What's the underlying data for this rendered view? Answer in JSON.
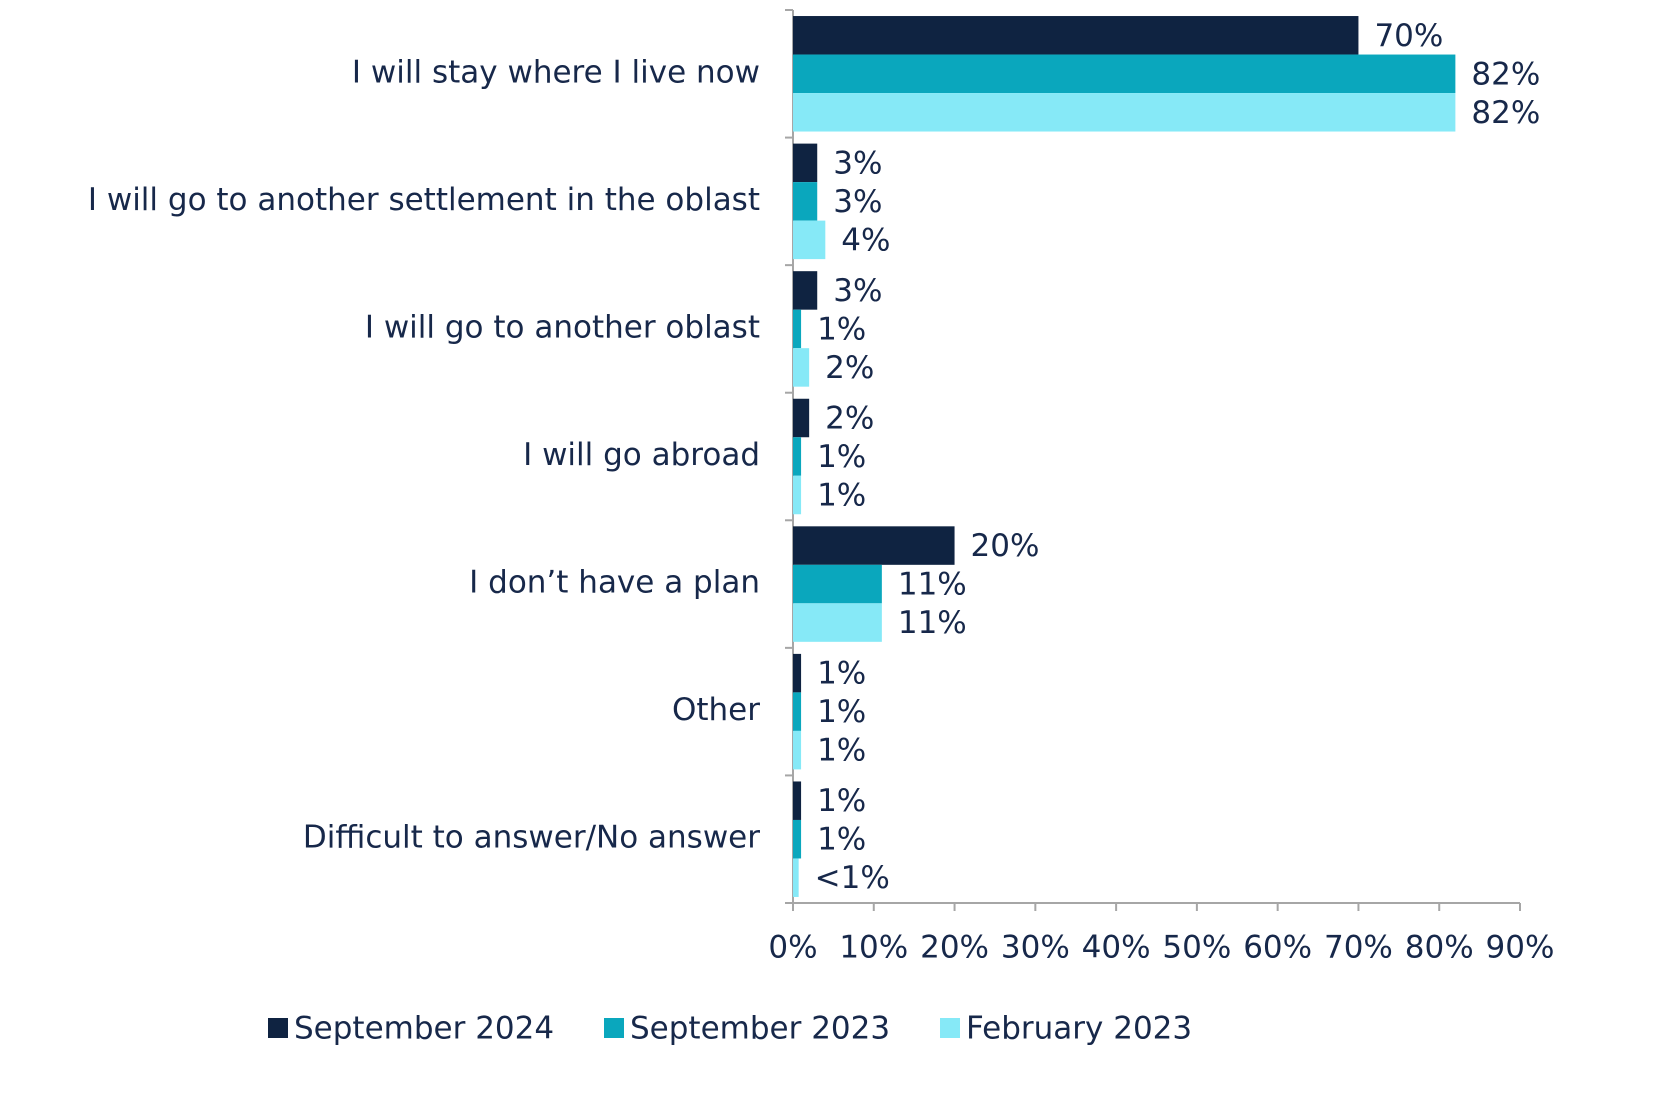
{
  "chart_data": {
    "type": "bar",
    "orientation": "horizontal",
    "categories": [
      "I will stay where I live now",
      "I will go to another settlement in the oblast",
      "I will go to another oblast",
      "I will go abroad",
      "I don’t have a plan",
      "Other",
      "Difficult to answer/No answer"
    ],
    "series": [
      {
        "name": "September 2024",
        "color": "#0f2341",
        "values": [
          70,
          3,
          3,
          2,
          20,
          1,
          1
        ],
        "value_labels": [
          "70%",
          "3%",
          "3%",
          "2%",
          "20%",
          "1%",
          "1%"
        ]
      },
      {
        "name": "September 2023",
        "color": "#0aa7bd",
        "values": [
          82,
          3,
          1,
          1,
          11,
          1,
          1
        ],
        "value_labels": [
          "82%",
          "3%",
          "1%",
          "1%",
          "11%",
          "1%",
          "1%"
        ]
      },
      {
        "name": "February 2023",
        "color": "#86e9f7",
        "values": [
          82,
          4,
          2,
          1,
          11,
          1,
          0.7
        ],
        "value_labels": [
          "82%",
          "4%",
          "2%",
          "1%",
          "11%",
          "1%",
          "<1%"
        ]
      }
    ],
    "xlim": [
      0,
      90
    ],
    "xticks": [
      {
        "value": 0,
        "label": "0%"
      },
      {
        "value": 10,
        "label": "10%"
      },
      {
        "value": 20,
        "label": "20%"
      },
      {
        "value": 30,
        "label": "30%"
      },
      {
        "value": 40,
        "label": "40%"
      },
      {
        "value": 50,
        "label": "50%"
      },
      {
        "value": 60,
        "label": "60%"
      },
      {
        "value": 70,
        "label": "70%"
      },
      {
        "value": 80,
        "label": "80%"
      },
      {
        "value": 90,
        "label": "90%"
      }
    ],
    "legend": "bottom"
  }
}
